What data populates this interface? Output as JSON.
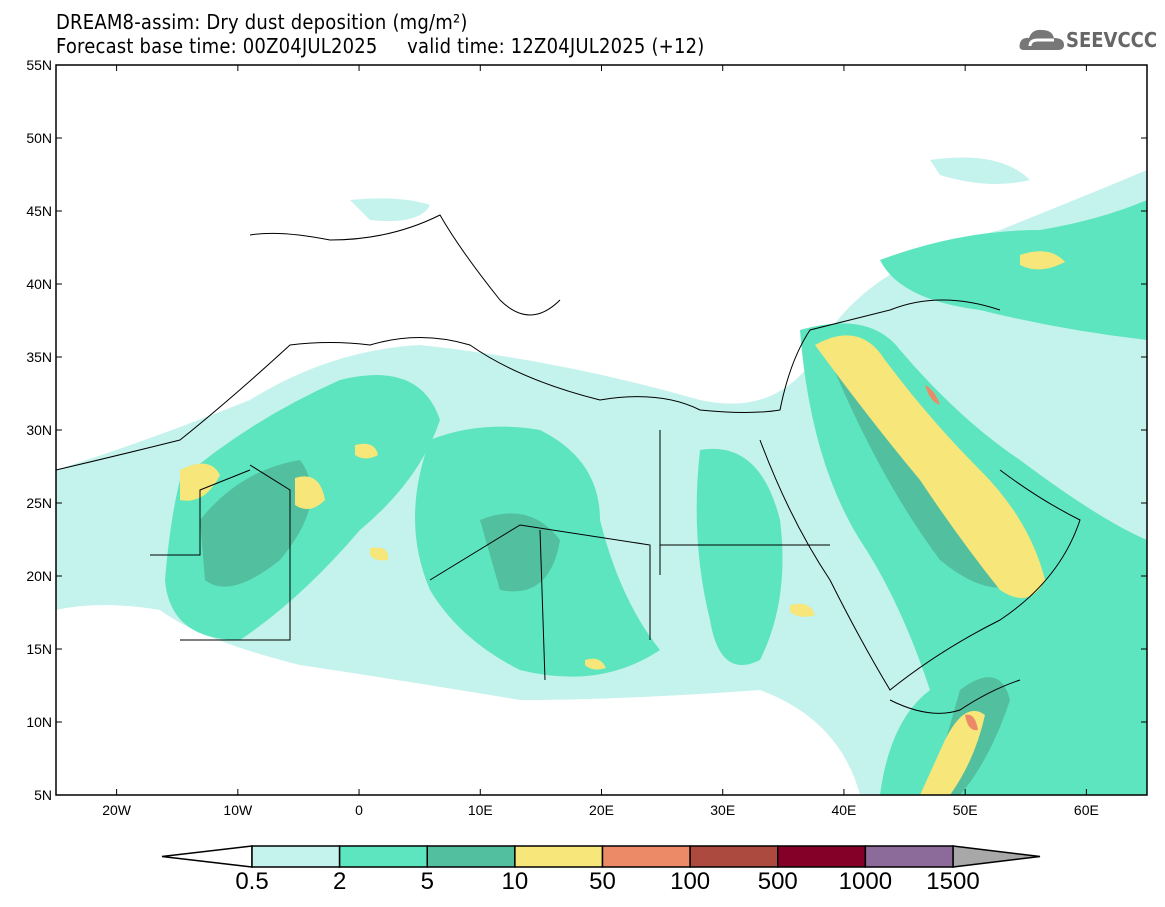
{
  "header": {
    "title": "DREAM8-assim: Dry dust deposition (mg/m²)",
    "subtitle": "Forecast base time: 00Z04JUL2025     valid time: 12Z04JUL2025 (+12)",
    "logo_text": "SEEVCCC"
  },
  "map": {
    "lon_range": [
      -25,
      65
    ],
    "lat_range": [
      5,
      55
    ],
    "lon_labels": [
      "20W",
      "10W",
      "0",
      "10E",
      "20E",
      "30E",
      "40E",
      "50E",
      "60E"
    ],
    "lat_labels": [
      "5N",
      "10N",
      "15N",
      "20N",
      "25N",
      "30N",
      "35N",
      "40N",
      "45N",
      "50N",
      "55N"
    ]
  },
  "legend": {
    "labels": [
      "0.5",
      "2",
      "5",
      "10",
      "50",
      "100",
      "500",
      "1000",
      "1500"
    ],
    "colors": [
      "#c4f2ec",
      "#5de5c0",
      "#52bf9e",
      "#f7e67a",
      "#ec8a68",
      "#ac4a40",
      "#850029",
      "#8c6a9a"
    ],
    "under_color": "#ffffff",
    "over_color": "#a8a8a8"
  }
}
